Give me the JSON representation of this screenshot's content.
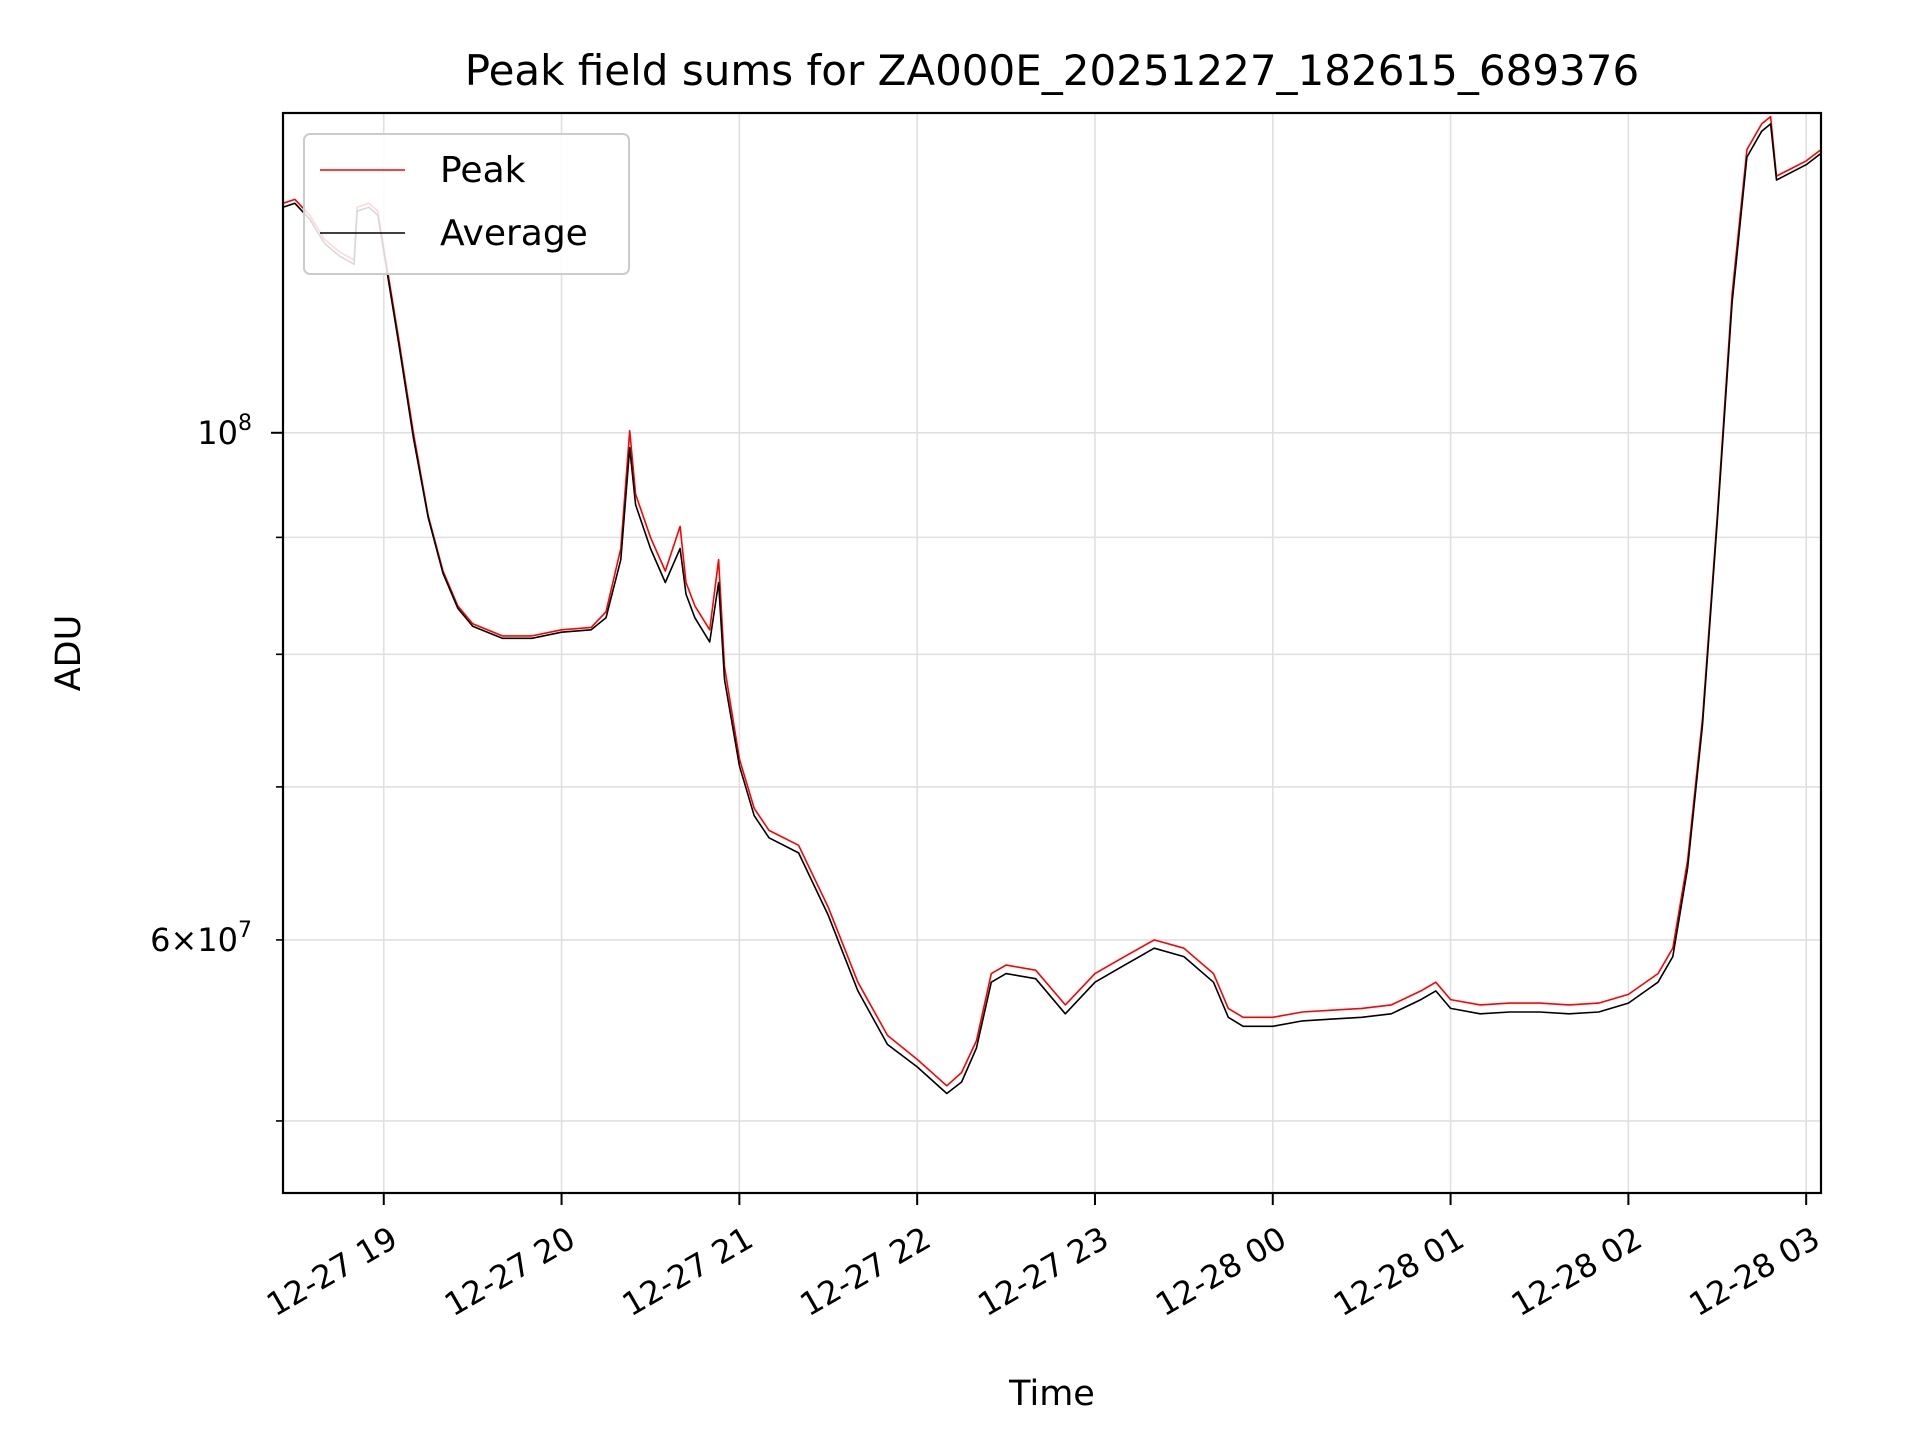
{
  "chart_data": {
    "type": "line",
    "title": "Peak field sums for ZA000E_20251227_182615_689376",
    "xlabel": "Time",
    "ylabel": "ADU",
    "y_scale": "log",
    "xlim": [
      "2025-12-27 18:26",
      "2025-12-28 03:05"
    ],
    "ylim": [
      46500000,
      138000000
    ],
    "x_ticks": [
      "12-27 19",
      "12-27 20",
      "12-27 21",
      "12-27 22",
      "12-27 23",
      "12-28 00",
      "12-28 01",
      "12-28 02",
      "12-28 03"
    ],
    "y_major_tick_labels": [
      "10^8",
      "6×10^7"
    ],
    "legend": {
      "position": "upper left",
      "entries": [
        "Peak",
        "Average"
      ]
    },
    "grid": true,
    "colors": {
      "Peak": "#ff0000",
      "Average": "#000000"
    },
    "series": [
      {
        "name": "Peak",
        "color": "#ff0000",
        "points": [
          [
            "2025-12-27 18:26",
            126000000
          ],
          [
            "2025-12-27 18:30",
            126500000
          ],
          [
            "2025-12-27 18:35",
            124500000
          ],
          [
            "2025-12-27 18:40",
            121500000
          ],
          [
            "2025-12-27 18:45",
            120000000
          ],
          [
            "2025-12-27 18:50",
            119000000
          ],
          [
            "2025-12-27 18:51",
            125500000
          ],
          [
            "2025-12-27 18:55",
            126000000
          ],
          [
            "2025-12-27 18:58",
            125000000
          ],
          [
            "2025-12-27 19:05",
            110000000
          ],
          [
            "2025-12-27 19:10",
            100000000
          ],
          [
            "2025-12-27 19:15",
            92000000
          ],
          [
            "2025-12-27 19:20",
            87000000
          ],
          [
            "2025-12-27 19:25",
            84000000
          ],
          [
            "2025-12-27 19:30",
            82500000
          ],
          [
            "2025-12-27 19:40",
            81500000
          ],
          [
            "2025-12-27 19:50",
            81500000
          ],
          [
            "2025-12-27 20:00",
            82000000
          ],
          [
            "2025-12-27 20:10",
            82200000
          ],
          [
            "2025-12-27 20:15",
            83500000
          ],
          [
            "2025-12-27 20:20",
            89000000
          ],
          [
            "2025-12-27 20:23",
            100200000
          ],
          [
            "2025-12-27 20:25",
            94000000
          ],
          [
            "2025-12-27 20:30",
            90000000
          ],
          [
            "2025-12-27 20:35",
            87000000
          ],
          [
            "2025-12-27 20:40",
            91000000
          ],
          [
            "2025-12-27 20:42",
            86000000
          ],
          [
            "2025-12-27 20:45",
            84000000
          ],
          [
            "2025-12-27 20:50",
            82000000
          ],
          [
            "2025-12-27 20:53",
            88000000
          ],
          [
            "2025-12-27 20:55",
            79000000
          ],
          [
            "2025-12-27 21:00",
            72000000
          ],
          [
            "2025-12-27 21:05",
            68500000
          ],
          [
            "2025-12-27 21:10",
            67000000
          ],
          [
            "2025-12-27 21:20",
            66000000
          ],
          [
            "2025-12-27 21:30",
            62000000
          ],
          [
            "2025-12-27 21:40",
            57500000
          ],
          [
            "2025-12-27 21:50",
            54500000
          ],
          [
            "2025-12-27 22:00",
            53200000
          ],
          [
            "2025-12-27 22:10",
            51800000
          ],
          [
            "2025-12-27 22:15",
            52500000
          ],
          [
            "2025-12-27 22:20",
            54200000
          ],
          [
            "2025-12-27 22:25",
            58000000
          ],
          [
            "2025-12-27 22:30",
            58500000
          ],
          [
            "2025-12-27 22:40",
            58200000
          ],
          [
            "2025-12-27 22:50",
            56200000
          ],
          [
            "2025-12-27 23:00",
            58000000
          ],
          [
            "2025-12-27 23:10",
            59000000
          ],
          [
            "2025-12-27 23:20",
            60000000
          ],
          [
            "2025-12-27 23:30",
            59500000
          ],
          [
            "2025-12-27 23:40",
            58000000
          ],
          [
            "2025-12-27 23:45",
            56000000
          ],
          [
            "2025-12-27 23:50",
            55500000
          ],
          [
            "2025-12-28 00:00",
            55500000
          ],
          [
            "2025-12-28 00:10",
            55800000
          ],
          [
            "2025-12-28 00:20",
            55900000
          ],
          [
            "2025-12-28 00:30",
            56000000
          ],
          [
            "2025-12-28 00:40",
            56200000
          ],
          [
            "2025-12-28 00:50",
            57000000
          ],
          [
            "2025-12-28 00:55",
            57500000
          ],
          [
            "2025-12-28 01:00",
            56500000
          ],
          [
            "2025-12-28 01:10",
            56200000
          ],
          [
            "2025-12-28 01:20",
            56300000
          ],
          [
            "2025-12-28 01:30",
            56300000
          ],
          [
            "2025-12-28 01:40",
            56200000
          ],
          [
            "2025-12-28 01:50",
            56300000
          ],
          [
            "2025-12-28 02:00",
            56800000
          ],
          [
            "2025-12-28 02:10",
            58000000
          ],
          [
            "2025-12-28 02:15",
            59500000
          ],
          [
            "2025-12-28 02:20",
            65000000
          ],
          [
            "2025-12-28 02:25",
            75000000
          ],
          [
            "2025-12-28 02:30",
            92000000
          ],
          [
            "2025-12-28 02:35",
            115000000
          ],
          [
            "2025-12-28 02:40",
            133000000
          ],
          [
            "2025-12-28 02:45",
            136500000
          ],
          [
            "2025-12-28 02:48",
            137500000
          ],
          [
            "2025-12-28 02:50",
            129500000
          ],
          [
            "2025-12-28 02:55",
            130500000
          ],
          [
            "2025-12-28 03:00",
            131500000
          ],
          [
            "2025-12-28 03:05",
            133000000
          ]
        ]
      },
      {
        "name": "Average",
        "color": "#000000",
        "points": [
          [
            "2025-12-27 18:26",
            125500000
          ],
          [
            "2025-12-27 18:30",
            126000000
          ],
          [
            "2025-12-27 18:35",
            124000000
          ],
          [
            "2025-12-27 18:40",
            121000000
          ],
          [
            "2025-12-27 18:45",
            119500000
          ],
          [
            "2025-12-27 18:50",
            118500000
          ],
          [
            "2025-12-27 18:51",
            125000000
          ],
          [
            "2025-12-27 18:55",
            125500000
          ],
          [
            "2025-12-27 18:58",
            124500000
          ],
          [
            "2025-12-27 19:05",
            109500000
          ],
          [
            "2025-12-27 19:10",
            99500000
          ],
          [
            "2025-12-27 19:15",
            91800000
          ],
          [
            "2025-12-27 19:20",
            86800000
          ],
          [
            "2025-12-27 19:25",
            83800000
          ],
          [
            "2025-12-27 19:30",
            82300000
          ],
          [
            "2025-12-27 19:40",
            81300000
          ],
          [
            "2025-12-27 19:50",
            81300000
          ],
          [
            "2025-12-27 20:00",
            81800000
          ],
          [
            "2025-12-27 20:10",
            82000000
          ],
          [
            "2025-12-27 20:15",
            83000000
          ],
          [
            "2025-12-27 20:20",
            88000000
          ],
          [
            "2025-12-27 20:23",
            98500000
          ],
          [
            "2025-12-27 20:25",
            93000000
          ],
          [
            "2025-12-27 20:30",
            89000000
          ],
          [
            "2025-12-27 20:35",
            86000000
          ],
          [
            "2025-12-27 20:40",
            89000000
          ],
          [
            "2025-12-27 20:42",
            85000000
          ],
          [
            "2025-12-27 20:45",
            83000000
          ],
          [
            "2025-12-27 20:50",
            81000000
          ],
          [
            "2025-12-27 20:53",
            86000000
          ],
          [
            "2025-12-27 20:55",
            78000000
          ],
          [
            "2025-12-27 21:00",
            71500000
          ],
          [
            "2025-12-27 21:05",
            68000000
          ],
          [
            "2025-12-27 21:10",
            66500000
          ],
          [
            "2025-12-27 21:20",
            65500000
          ],
          [
            "2025-12-27 21:30",
            61500000
          ],
          [
            "2025-12-27 21:40",
            57000000
          ],
          [
            "2025-12-27 21:50",
            54000000
          ],
          [
            "2025-12-27 22:00",
            52800000
          ],
          [
            "2025-12-27 22:10",
            51400000
          ],
          [
            "2025-12-27 22:15",
            52000000
          ],
          [
            "2025-12-27 22:20",
            53800000
          ],
          [
            "2025-12-27 22:25",
            57500000
          ],
          [
            "2025-12-27 22:30",
            58000000
          ],
          [
            "2025-12-27 22:40",
            57700000
          ],
          [
            "2025-12-27 22:50",
            55700000
          ],
          [
            "2025-12-27 23:00",
            57500000
          ],
          [
            "2025-12-27 23:10",
            58500000
          ],
          [
            "2025-12-27 23:20",
            59500000
          ],
          [
            "2025-12-27 23:30",
            59000000
          ],
          [
            "2025-12-27 23:40",
            57500000
          ],
          [
            "2025-12-27 23:45",
            55500000
          ],
          [
            "2025-12-27 23:50",
            55000000
          ],
          [
            "2025-12-28 00:00",
            55000000
          ],
          [
            "2025-12-28 00:10",
            55300000
          ],
          [
            "2025-12-28 00:20",
            55400000
          ],
          [
            "2025-12-28 00:30",
            55500000
          ],
          [
            "2025-12-28 00:40",
            55700000
          ],
          [
            "2025-12-28 00:50",
            56500000
          ],
          [
            "2025-12-28 00:55",
            57000000
          ],
          [
            "2025-12-28 01:00",
            56000000
          ],
          [
            "2025-12-28 01:10",
            55700000
          ],
          [
            "2025-12-28 01:20",
            55800000
          ],
          [
            "2025-12-28 01:30",
            55800000
          ],
          [
            "2025-12-28 01:40",
            55700000
          ],
          [
            "2025-12-28 01:50",
            55800000
          ],
          [
            "2025-12-28 02:00",
            56300000
          ],
          [
            "2025-12-28 02:10",
            57500000
          ],
          [
            "2025-12-28 02:15",
            59000000
          ],
          [
            "2025-12-28 02:20",
            64500000
          ],
          [
            "2025-12-28 02:25",
            74500000
          ],
          [
            "2025-12-28 02:30",
            91500000
          ],
          [
            "2025-12-28 02:35",
            114000000
          ],
          [
            "2025-12-28 02:40",
            132000000
          ],
          [
            "2025-12-28 02:45",
            135500000
          ],
          [
            "2025-12-28 02:48",
            136500000
          ],
          [
            "2025-12-28 02:50",
            129000000
          ],
          [
            "2025-12-28 02:55",
            130000000
          ],
          [
            "2025-12-28 03:00",
            131000000
          ],
          [
            "2025-12-28 03:05",
            132500000
          ]
        ]
      }
    ]
  }
}
